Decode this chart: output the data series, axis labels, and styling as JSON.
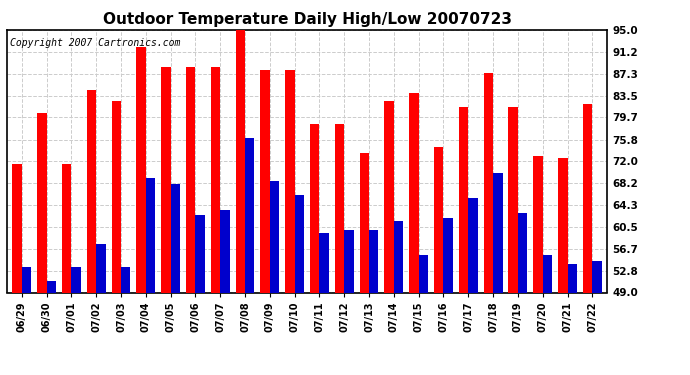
{
  "title": "Outdoor Temperature Daily High/Low 20070723",
  "copyright": "Copyright 2007 Cartronics.com",
  "dates": [
    "06/29",
    "06/30",
    "07/01",
    "07/02",
    "07/03",
    "07/04",
    "07/05",
    "07/06",
    "07/07",
    "07/08",
    "07/09",
    "07/10",
    "07/11",
    "07/12",
    "07/13",
    "07/14",
    "07/15",
    "07/16",
    "07/17",
    "07/18",
    "07/19",
    "07/20",
    "07/21",
    "07/22"
  ],
  "highs": [
    71.5,
    80.5,
    71.5,
    84.5,
    82.5,
    92.0,
    88.5,
    88.5,
    88.5,
    95.0,
    88.0,
    88.0,
    78.5,
    78.5,
    73.5,
    82.5,
    84.0,
    74.5,
    81.5,
    87.5,
    81.5,
    73.0,
    72.5,
    82.0
  ],
  "lows": [
    53.5,
    51.0,
    53.5,
    57.5,
    53.5,
    69.0,
    68.0,
    62.5,
    63.5,
    76.0,
    68.5,
    66.0,
    59.5,
    60.0,
    60.0,
    61.5,
    55.5,
    62.0,
    65.5,
    70.0,
    63.0,
    55.5,
    54.0,
    54.5
  ],
  "high_color": "#ff0000",
  "low_color": "#0000cc",
  "bg_color": "#ffffff",
  "plot_bg_color": "#ffffff",
  "grid_color": "#cccccc",
  "yticks": [
    49.0,
    52.8,
    56.7,
    60.5,
    64.3,
    68.2,
    72.0,
    75.8,
    79.7,
    83.5,
    87.3,
    91.2,
    95.0
  ],
  "ymin": 49.0,
  "ymax": 95.0,
  "title_fontsize": 11,
  "copyright_fontsize": 7
}
